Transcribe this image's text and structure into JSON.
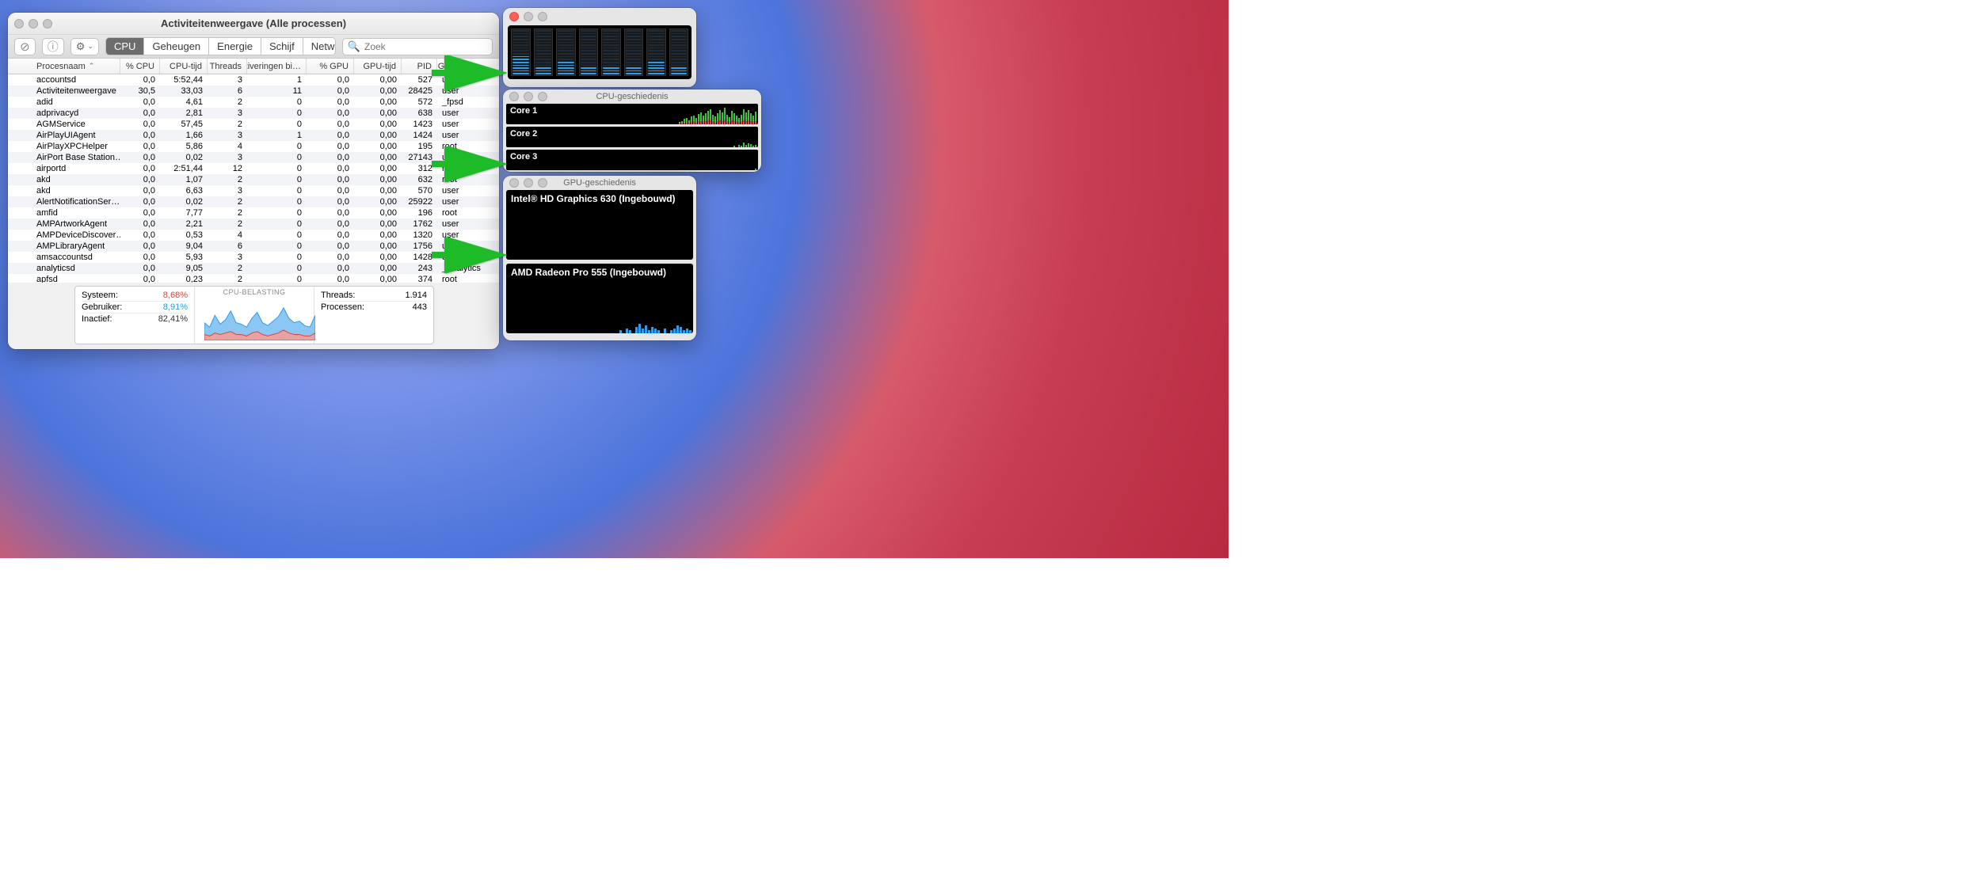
{
  "desktop": {
    "accent": "#28c840"
  },
  "main": {
    "title": "Activiteitenweergave (Alle processen)",
    "toolbar": {
      "stop_icon": "⊘",
      "info_icon": "ⓘ",
      "gear_icon": "⚙",
      "tabs": [
        "CPU",
        "Geheugen",
        "Energie",
        "Schijf",
        "Netwerk"
      ],
      "active_tab": 0,
      "search_placeholder": "Zoek"
    },
    "columns": [
      {
        "key": "name",
        "label": "Procesnaam",
        "w": "name",
        "sort": true
      },
      {
        "key": "cpu",
        "label": "% CPU",
        "w": "c-cpu"
      },
      {
        "key": "time",
        "label": "CPU-tijd",
        "w": "c-time"
      },
      {
        "key": "thr",
        "label": "Threads",
        "w": "c-thr"
      },
      {
        "key": "act",
        "label": "Activeringen bi…",
        "w": "c-act"
      },
      {
        "key": "gpup",
        "label": "% GPU",
        "w": "c-gpup"
      },
      {
        "key": "gput",
        "label": "GPU-tijd",
        "w": "c-gput"
      },
      {
        "key": "pid",
        "label": "PID",
        "w": "c-pid"
      },
      {
        "key": "user",
        "label": "Gebruiker",
        "w": "c-user"
      }
    ],
    "rows": [
      {
        "name": "accountsd",
        "cpu": "0,0",
        "time": "5:52,44",
        "thr": "3",
        "act": "1",
        "gpup": "0,0",
        "gput": "0,00",
        "pid": "527",
        "user": "user"
      },
      {
        "name": "Activiteitenweergave",
        "cpu": "30,5",
        "time": "33,03",
        "thr": "6",
        "act": "11",
        "gpup": "0,0",
        "gput": "0,00",
        "pid": "28425",
        "user": "user"
      },
      {
        "name": "adid",
        "cpu": "0,0",
        "time": "4,61",
        "thr": "2",
        "act": "0",
        "gpup": "0,0",
        "gput": "0,00",
        "pid": "572",
        "user": "_fpsd"
      },
      {
        "name": "adprivacyd",
        "cpu": "0,0",
        "time": "2,81",
        "thr": "3",
        "act": "0",
        "gpup": "0,0",
        "gput": "0,00",
        "pid": "638",
        "user": "user"
      },
      {
        "name": "AGMService",
        "cpu": "0,0",
        "time": "57,45",
        "thr": "2",
        "act": "0",
        "gpup": "0,0",
        "gput": "0,00",
        "pid": "1423",
        "user": "user"
      },
      {
        "name": "AirPlayUIAgent",
        "cpu": "0,0",
        "time": "1,66",
        "thr": "3",
        "act": "1",
        "gpup": "0,0",
        "gput": "0,00",
        "pid": "1424",
        "user": "user"
      },
      {
        "name": "AirPlayXPCHelper",
        "cpu": "0,0",
        "time": "5,86",
        "thr": "4",
        "act": "0",
        "gpup": "0,0",
        "gput": "0,00",
        "pid": "195",
        "user": "root"
      },
      {
        "name": "AirPort Base Station…",
        "cpu": "0,0",
        "time": "0,02",
        "thr": "3",
        "act": "0",
        "gpup": "0,0",
        "gput": "0,00",
        "pid": "27143",
        "user": "user"
      },
      {
        "name": "airportd",
        "cpu": "0,0",
        "time": "2:51,44",
        "thr": "12",
        "act": "0",
        "gpup": "0,0",
        "gput": "0,00",
        "pid": "312",
        "user": "root"
      },
      {
        "name": "akd",
        "cpu": "0,0",
        "time": "1,07",
        "thr": "2",
        "act": "0",
        "gpup": "0,0",
        "gput": "0,00",
        "pid": "632",
        "user": "root"
      },
      {
        "name": "akd",
        "cpu": "0,0",
        "time": "6,63",
        "thr": "3",
        "act": "0",
        "gpup": "0,0",
        "gput": "0,00",
        "pid": "570",
        "user": "user"
      },
      {
        "name": "AlertNotificationSer…",
        "cpu": "0,0",
        "time": "0,02",
        "thr": "2",
        "act": "0",
        "gpup": "0,0",
        "gput": "0,00",
        "pid": "25922",
        "user": "user"
      },
      {
        "name": "amfid",
        "cpu": "0,0",
        "time": "7,77",
        "thr": "2",
        "act": "0",
        "gpup": "0,0",
        "gput": "0,00",
        "pid": "196",
        "user": "root"
      },
      {
        "name": "AMPArtworkAgent",
        "cpu": "0,0",
        "time": "2,21",
        "thr": "2",
        "act": "0",
        "gpup": "0,0",
        "gput": "0,00",
        "pid": "1762",
        "user": "user"
      },
      {
        "name": "AMPDeviceDiscover…",
        "cpu": "0,0",
        "time": "0,53",
        "thr": "4",
        "act": "0",
        "gpup": "0,0",
        "gput": "0,00",
        "pid": "1320",
        "user": "user"
      },
      {
        "name": "AMPLibraryAgent",
        "cpu": "0,0",
        "time": "9,04",
        "thr": "6",
        "act": "0",
        "gpup": "0,0",
        "gput": "0,00",
        "pid": "1756",
        "user": "user"
      },
      {
        "name": "amsaccountsd",
        "cpu": "0,0",
        "time": "5,93",
        "thr": "3",
        "act": "0",
        "gpup": "0,0",
        "gput": "0,00",
        "pid": "1428",
        "user": "user"
      },
      {
        "name": "analyticsd",
        "cpu": "0,0",
        "time": "9,05",
        "thr": "2",
        "act": "0",
        "gpup": "0,0",
        "gput": "0,00",
        "pid": "243",
        "user": "_analyticsd"
      },
      {
        "name": "apfsd",
        "cpu": "0,0",
        "time": "0,23",
        "thr": "2",
        "act": "0",
        "gpup": "0,0",
        "gput": "0,00",
        "pid": "374",
        "user": "root"
      }
    ],
    "summary": {
      "stats_left": [
        {
          "label": "Systeem:",
          "value": "8,68%",
          "color": "#e2443b"
        },
        {
          "label": "Gebruiker:",
          "value": "8,91%",
          "color": "#2d9cef"
        },
        {
          "label": "Inactief:",
          "value": "82,41%",
          "color": "#333"
        }
      ],
      "chart_label": "CPU-BELASTING",
      "chart_user_color": "#8cc6f2",
      "chart_sys_color": "#e9a2a2",
      "chart_data": {
        "user": [
          8,
          6,
          12,
          7,
          9,
          14,
          8,
          7,
          6,
          10,
          13,
          8,
          7,
          9,
          11,
          15,
          10,
          8,
          9,
          7,
          6,
          12
        ],
        "sys": [
          4,
          3,
          5,
          4,
          5,
          6,
          4,
          4,
          3,
          5,
          6,
          4,
          3,
          4,
          5,
          7,
          5,
          4,
          4,
          3,
          3,
          5
        ]
      },
      "stats_right": [
        {
          "label": "Threads:",
          "value": "1.914"
        },
        {
          "label": "Processen:",
          "value": "443"
        }
      ]
    }
  },
  "bars": {
    "levels": [
      7,
      3,
      5,
      3,
      3,
      3,
      5,
      3
    ],
    "total_segments": 16,
    "on_color": "#2d9cef",
    "off_color": "#1e2b38"
  },
  "cpu_hist": {
    "title": "CPU-geschiedenis",
    "cores": [
      {
        "label": "Core 1",
        "data": [
          [
            0,
            0
          ],
          [
            2,
            1
          ],
          [
            3,
            1
          ],
          [
            5,
            2
          ],
          [
            6,
            2
          ],
          [
            4,
            1
          ],
          [
            7,
            3
          ],
          [
            8,
            3
          ],
          [
            6,
            2
          ],
          [
            9,
            4
          ],
          [
            11,
            4
          ],
          [
            8,
            3
          ],
          [
            10,
            4
          ],
          [
            12,
            5
          ],
          [
            14,
            5
          ],
          [
            9,
            3
          ],
          [
            8,
            2
          ],
          [
            10,
            4
          ],
          [
            13,
            5
          ],
          [
            11,
            4
          ],
          [
            15,
            6
          ],
          [
            9,
            3
          ],
          [
            7,
            2
          ],
          [
            12,
            5
          ],
          [
            10,
            4
          ],
          [
            8,
            3
          ],
          [
            6,
            2
          ],
          [
            9,
            3
          ],
          [
            14,
            5
          ],
          [
            11,
            4
          ],
          [
            13,
            5
          ],
          [
            10,
            4
          ],
          [
            8,
            3
          ],
          [
            12,
            4
          ]
        ]
      },
      {
        "label": "Core 2",
        "data": [
          [
            0,
            0
          ],
          [
            0,
            0
          ],
          [
            0,
            0
          ],
          [
            0,
            0
          ],
          [
            0,
            0
          ],
          [
            0,
            0
          ],
          [
            0,
            0
          ],
          [
            0,
            0
          ],
          [
            0,
            0
          ],
          [
            0,
            0
          ],
          [
            0,
            0
          ],
          [
            0,
            0
          ],
          [
            0,
            0
          ],
          [
            0,
            0
          ],
          [
            0,
            0
          ],
          [
            0,
            0
          ],
          [
            0,
            0
          ],
          [
            0,
            0
          ],
          [
            0,
            0
          ],
          [
            0,
            0
          ],
          [
            0,
            0
          ],
          [
            0,
            0
          ],
          [
            0,
            0
          ],
          [
            0,
            0
          ],
          [
            2,
            0
          ],
          [
            0,
            0
          ],
          [
            3,
            0
          ],
          [
            2,
            0
          ],
          [
            6,
            0
          ],
          [
            3,
            0
          ],
          [
            5,
            0
          ],
          [
            4,
            0
          ],
          [
            2,
            0
          ],
          [
            3,
            0
          ]
        ]
      },
      {
        "label": "Core 3",
        "data": [
          [
            0,
            0
          ],
          [
            0,
            0
          ],
          [
            0,
            0
          ],
          [
            0,
            0
          ],
          [
            0,
            0
          ],
          [
            0,
            0
          ],
          [
            0,
            0
          ],
          [
            0,
            0
          ],
          [
            0,
            0
          ],
          [
            0,
            0
          ],
          [
            0,
            0
          ],
          [
            0,
            0
          ],
          [
            0,
            0
          ],
          [
            0,
            0
          ],
          [
            0,
            0
          ],
          [
            0,
            0
          ],
          [
            0,
            0
          ],
          [
            0,
            0
          ],
          [
            0,
            0
          ],
          [
            0,
            0
          ],
          [
            0,
            0
          ],
          [
            0,
            0
          ],
          [
            0,
            0
          ],
          [
            0,
            0
          ],
          [
            0,
            0
          ],
          [
            0,
            0
          ],
          [
            0,
            0
          ],
          [
            0,
            0
          ],
          [
            0,
            0
          ],
          [
            0,
            0
          ],
          [
            0,
            0
          ],
          [
            0,
            0
          ],
          [
            0,
            0
          ],
          [
            2,
            0
          ]
        ]
      }
    ]
  },
  "gpu_hist": {
    "title": "GPU-geschiedenis",
    "gpus": [
      {
        "label": "Intel® HD Graphics 630 (Ingebouwd)",
        "data": []
      },
      {
        "label": "AMD Radeon Pro 555 (Ingebouwd)",
        "data": [
          0,
          0,
          0,
          0,
          0,
          0,
          0,
          0,
          0,
          0,
          0,
          2,
          0,
          3,
          2,
          0,
          4,
          6,
          3,
          5,
          2,
          4,
          3,
          2,
          0,
          3,
          0,
          2,
          3,
          5,
          4,
          2,
          3,
          2
        ]
      }
    ],
    "bar_color": "#2d9cef"
  },
  "arrows": {
    "color": "#1dbb27"
  }
}
